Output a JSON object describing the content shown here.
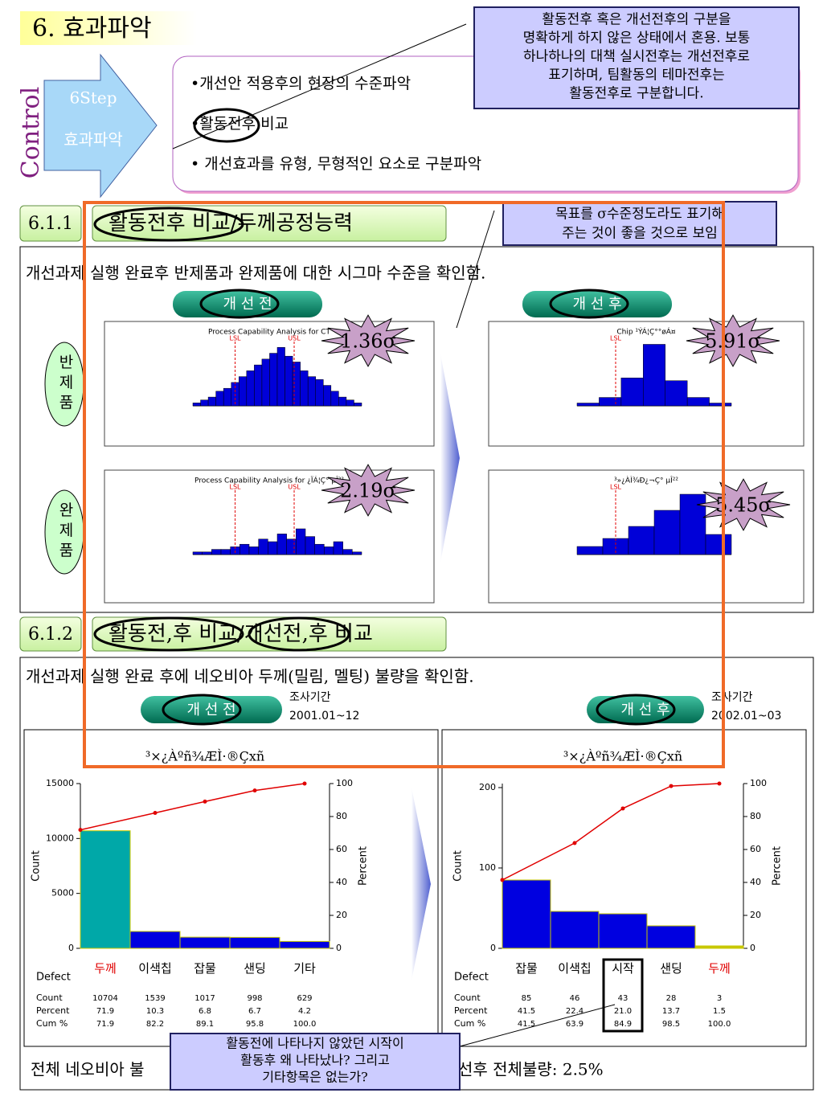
{
  "header": {
    "title": "6. 효과파악"
  },
  "step": {
    "side": "Control",
    "line1": "6Step",
    "line2": "효과파악"
  },
  "bullets": [
    "•개선안 적용후의 현장의 수준파악",
    "•활동전후 비교",
    "• 개선효과를 유형, 무형적인 요소로 구분파악"
  ],
  "callout_top": [
    "활동전후 혹은 개선전후의 구분을",
    "명확하게 하지 않은 상태에서 혼용. 보통",
    "하나하나의 대책 실시전후는 개선전후로",
    "표기하며, 팀활동의 테마전후는",
    "활동전후로 구분합니다."
  ],
  "section1": {
    "number": "6.1.1",
    "title": "활동전후 비교/두께공정능력",
    "note": [
      "목표를 σ수준정도라도 표기해",
      "주는 것이 좋을 것으로 보임"
    ],
    "desc": "개선과제 실행 완료후 반제품과 완제품에 대한 시그마 수준을 확인함.",
    "before": "개 선 전",
    "after": "개 선 후",
    "rows": [
      "반제품",
      "완제품"
    ],
    "capability": [
      {
        "title": "Process Capability Analysis for CT",
        "sigma": "1.36σ",
        "spec_labels": [
          "LSL",
          "USL"
        ],
        "counts": [
          1,
          2,
          3,
          5,
          6,
          8,
          10,
          12,
          14,
          16,
          18,
          20,
          17,
          15,
          12,
          10,
          9,
          7,
          5,
          3,
          2,
          1
        ],
        "ylim": [
          0,
          22
        ]
      },
      {
        "title": "Chip ¹ÝÁ¦Ç°°øÁ¤",
        "sigma": "5.91σ",
        "spec_labels": [
          "LSL"
        ],
        "counts": [
          2,
          6,
          20,
          44,
          18,
          6,
          2
        ],
        "ylim": [
          0,
          46
        ]
      },
      {
        "title": "Process Capability Analysis for ¿ÏÁ¦Ç° µÎ²²",
        "sigma": "2.19σ",
        "spec_labels": [
          "LSL",
          "USL"
        ],
        "counts": [
          1,
          1,
          2,
          2,
          3,
          4,
          3,
          6,
          5,
          8,
          6,
          10,
          7,
          4,
          3,
          5,
          2,
          1
        ],
        "ylim": [
          0,
          25
        ]
      },
      {
        "title": "³»¿ÀÌ¾Ð¿¬Ç° µÎ²²",
        "sigma": "5.45σ",
        "spec_labels": [
          "LSL"
        ],
        "counts": [
          4,
          8,
          14,
          22,
          30,
          10
        ],
        "ylim": [
          0,
          32
        ]
      }
    ]
  },
  "section2": {
    "number": "6.1.2",
    "title": "활동전,후 비교/개선전,후 비교",
    "desc": "개선과제 실행 완료 후에  네오비아 두께(밀림, 멜팅) 불량을 확인함.",
    "charts": [
      {
        "type": "pareto",
        "button": "개 선 전",
        "period_label": "조사기간",
        "period": "2001.01~12",
        "title": "³×¿Àºñ¾ÆÌ·®Çxñ",
        "ylabel": "Count",
        "y2label": "Percent",
        "defect_label": "Defect",
        "categories": [
          "두께",
          "이색칩",
          "잡물",
          "샌딩",
          "기타"
        ],
        "category_colors": [
          "#e00000",
          "#000000",
          "#000000",
          "#000000",
          "#000000"
        ],
        "bar_colors": [
          "#00a8a8",
          "#0000e0",
          "#0000e0",
          "#0000e0",
          "#0000e0"
        ],
        "line_color": "#e00000",
        "count": {
          "name": "Count",
          "values": [
            10704,
            1539,
            1017,
            998,
            629
          ]
        },
        "percent": {
          "name": "Percent",
          "values": [
            71.9,
            10.3,
            6.8,
            6.7,
            4.2
          ]
        },
        "cum": {
          "name": "Cum %",
          "values": [
            71.9,
            82.2,
            89.1,
            95.8,
            100.0
          ],
          "value_labels": [
            "71.9",
            "82.2",
            "89.1",
            "95.8",
            "100.0"
          ]
        },
        "ylim": [
          0,
          15000
        ],
        "yticks": [
          0,
          5000,
          10000,
          15000
        ],
        "y2lim": [
          0,
          100
        ],
        "y2ticks": [
          0,
          20,
          40,
          60,
          80,
          100
        ]
      },
      {
        "type": "pareto",
        "button": "개 선 후",
        "period_label": "조사기간",
        "period": "2002.01~03",
        "title": "³×¿Àºñ¾ÆÌ·®Çxñ",
        "ylabel": "Count",
        "y2label": "Percent",
        "defect_label": "Defect",
        "categories": [
          "잡물",
          "이색칩",
          "시작",
          "샌딩",
          "두께"
        ],
        "category_colors": [
          "#000000",
          "#000000",
          "#000000",
          "#000000",
          "#e00000"
        ],
        "bar_colors": [
          "#0000e0",
          "#0000e0",
          "#0000e0",
          "#0000e0",
          "#c8c800"
        ],
        "line_color": "#e00000",
        "count": {
          "name": "Count",
          "values": [
            85,
            46,
            43,
            28,
            3
          ]
        },
        "percent": {
          "name": "Percent",
          "values": [
            41.5,
            22.4,
            21.0,
            13.7,
            1.5
          ],
          "value_labels": [
            "41.5",
            "22.4",
            "21.0",
            "13.7",
            "1.5"
          ]
        },
        "cum": {
          "name": "Cum %",
          "values": [
            41.5,
            63.9,
            84.9,
            98.5,
            100.0
          ],
          "value_labels": [
            "41.5",
            "63.9",
            "84.9",
            "98.5",
            "100.0"
          ]
        },
        "ylim": [
          0,
          205
        ],
        "yticks": [
          0,
          100,
          200
        ],
        "y2lim": [
          0,
          100
        ],
        "y2ticks": [
          0,
          20,
          40,
          60,
          80,
          100
        ]
      }
    ]
  },
  "callout_bottom": [
    "활동전에 나타나지 않았던 시작이",
    "활동후 왜 나타났나? 그리고",
    "기타항목은 없는가?"
  ],
  "footer": {
    "left": "전체 네오비아 불",
    "right": "선후 전체불량:  2.5%"
  }
}
